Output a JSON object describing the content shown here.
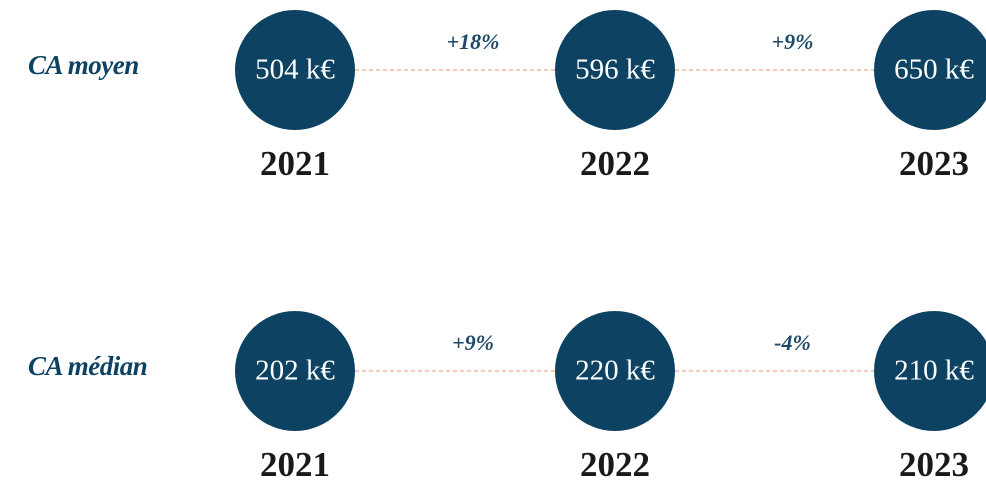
{
  "rows": [
    {
      "label": "CA moyen",
      "points": [
        {
          "value": "504 k€",
          "year": "2021"
        },
        {
          "value": "596 k€",
          "year": "2022"
        },
        {
          "value": "650 k€",
          "year": "2023"
        }
      ],
      "changes": [
        "+18%",
        "+9%"
      ]
    },
    {
      "label": "CA médian",
      "points": [
        {
          "value": "202 k€",
          "year": "2021"
        },
        {
          "value": "220 k€",
          "year": "2022"
        },
        {
          "value": "210 k€",
          "year": "2023"
        }
      ],
      "changes": [
        "+9%",
        "-4%"
      ]
    }
  ]
}
